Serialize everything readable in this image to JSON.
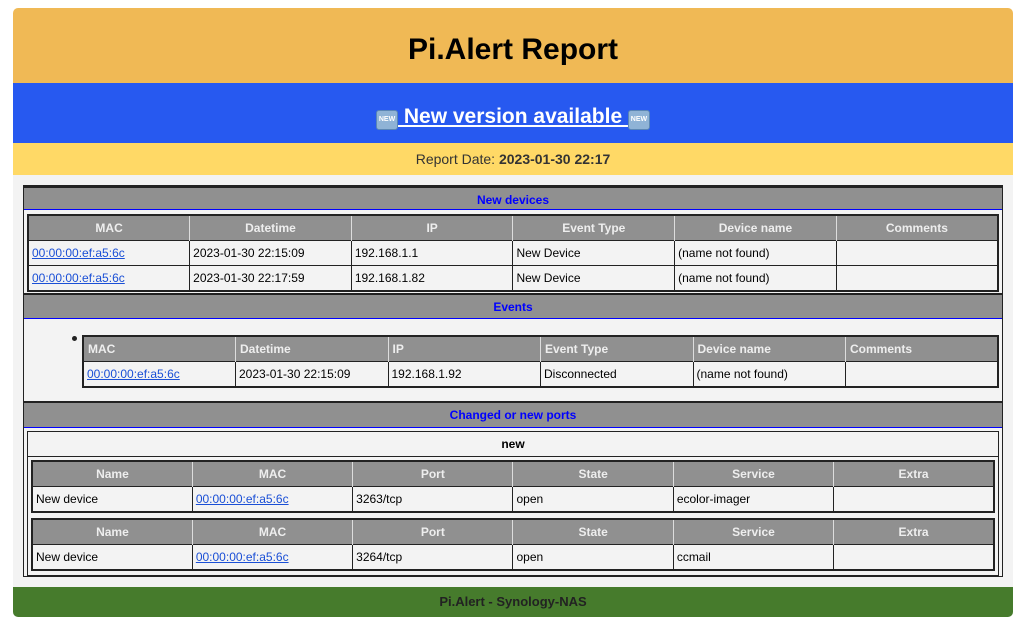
{
  "header": {
    "title": "Pi.Alert Report"
  },
  "update": {
    "label": " New version available ",
    "icon": "new-button-emoji",
    "icon_text": "NEW"
  },
  "report": {
    "label": "Report Date: ",
    "date": "2023-01-30 22:17"
  },
  "new_devices": {
    "title": "New devices",
    "columns": [
      "MAC",
      "Datetime",
      "IP",
      "Event Type",
      "Device name",
      "Comments"
    ],
    "rows": [
      [
        "00:00:00:ef:a5:6c",
        "2023-01-30 22:15:09",
        "192.168.1.1",
        "New Device",
        "(name not found)",
        ""
      ],
      [
        "00:00:00:ef:a5:6c",
        "2023-01-30 22:17:59",
        "192.168.1.82",
        "New Device",
        "(name not found)",
        ""
      ]
    ]
  },
  "events": {
    "title": "Events",
    "columns": [
      "MAC",
      "Datetime",
      "IP",
      "Event Type",
      "Device name",
      "Comments"
    ],
    "rows": [
      [
        "00:00:00:ef:a5:6c",
        "2023-01-30 22:15:09",
        "192.168.1.92",
        "Disconnected",
        "(name not found)",
        ""
      ]
    ]
  },
  "ports": {
    "title": "Changed or new ports",
    "group": "new",
    "columns": [
      "Name",
      "MAC",
      "Port",
      "State",
      "Service",
      "Extra"
    ],
    "tables": [
      [
        [
          "New device",
          "00:00:00:ef:a5:6c",
          "3263/tcp",
          "open",
          "ecolor-imager",
          ""
        ]
      ],
      [
        [
          "New device",
          "00:00:00:ef:a5:6c",
          "3264/tcp",
          "open",
          "ccmail",
          ""
        ]
      ]
    ]
  },
  "footer": {
    "text": "Pi.Alert - Synology-NAS"
  },
  "colors": {
    "header": "#f0b955",
    "update": "#2759f0",
    "date": "#ffd966",
    "footer": "#467b2c",
    "section": "#909090"
  }
}
